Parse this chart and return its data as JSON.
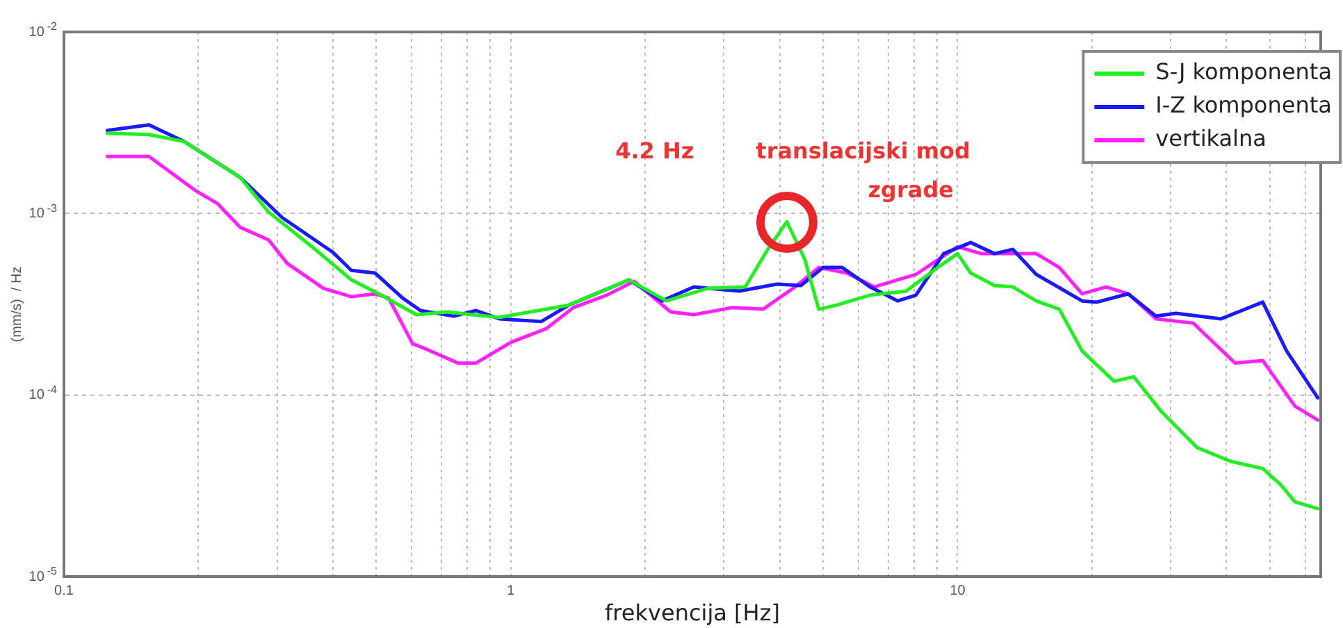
{
  "chart_data": {
    "type": "line",
    "xlabel": "frekvencija [Hz]",
    "ylabel": "(mm/s)  / Hz",
    "log": "xy",
    "grid": true,
    "legend": "top right",
    "marker": "none",
    "line_style": "solid",
    "xlim": [
      0.1,
      65
    ],
    "ylim": [
      1e-05,
      0.01
    ],
    "xticks": [
      0.1,
      {
        "value": 0.2,
        "label": null
      },
      {
        "value": 0.3,
        "label": null
      },
      {
        "value": 0.4,
        "label": null
      },
      {
        "value": 0.5,
        "label": null
      },
      {
        "value": 0.6,
        "label": null
      },
      {
        "value": 0.7,
        "label": null
      },
      {
        "value": 0.8,
        "label": null
      },
      {
        "value": 0.9,
        "label": null
      },
      1,
      {
        "value": 2,
        "label": null
      },
      {
        "value": 3,
        "label": null
      },
      {
        "value": 4,
        "label": null
      },
      {
        "value": 5,
        "label": null
      },
      {
        "value": 6,
        "label": null
      },
      {
        "value": 7,
        "label": null
      },
      {
        "value": 8,
        "label": null
      },
      {
        "value": 9,
        "label": null
      },
      10,
      {
        "value": 20,
        "label": null
      },
      {
        "value": 30,
        "label": null
      },
      {
        "value": 40,
        "label": null
      },
      {
        "value": 50,
        "label": null
      },
      {
        "value": 60,
        "label": null
      }
    ],
    "yticks": [
      {
        "value": 1e-05,
        "label": "10$^{-5}$"
      },
      {
        "value": 0.0001,
        "label": "10$^{-4}$"
      },
      {
        "value": 0.001,
        "label": "10$^{-3}$"
      },
      {
        "value": 0.01,
        "label": "10$^{-2}$"
      }
    ],
    "series": [
      {
        "name": "S-J komponenta",
        "color": "#22ee22",
        "x": [
          0.125,
          0.155,
          0.186,
          0.21,
          0.248,
          0.287,
          0.365,
          0.44,
          0.507,
          0.615,
          0.724,
          0.818,
          0.944,
          1.35,
          1.84,
          2.23,
          2.76,
          3.35,
          3.76,
          4.15,
          4.55,
          4.89,
          5.37,
          6.37,
          7.67,
          9.12,
          10,
          10.7,
          12.1,
          13.3,
          15.0,
          16.9,
          19.0,
          22.4,
          24.8,
          28.6,
          34.4,
          40.9,
          48.2,
          53.0,
          56.9,
          64
        ],
        "values": [
          0.00277,
          0.00272,
          0.00249,
          0.00206,
          0.00158,
          0.00102,
          0.000634,
          0.000431,
          0.000361,
          0.000277,
          0.000287,
          0.000277,
          0.000268,
          0.000313,
          0.000431,
          0.00033,
          0.000387,
          0.000394,
          0.000634,
          0.0009,
          0.00056,
          0.000297,
          0.000313,
          0.000355,
          0.000374,
          0.000513,
          0.000601,
          0.00047,
          0.000401,
          0.000394,
          0.00033,
          0.000297,
          0.000175,
          0.000119,
          0.000126,
          8.1e-05,
          5.13e-05,
          4.31e-05,
          3.94e-05,
          3.19e-05,
          2.58e-05,
          2.37e-05
        ]
      },
      {
        "name": "I-Z komponenta",
        "color": "#1a1aff",
        "x": [
          0.125,
          0.155,
          0.186,
          0.248,
          0.308,
          0.4,
          0.44,
          0.497,
          0.573,
          0.628,
          0.746,
          0.836,
          0.944,
          1.17,
          1.35,
          1.84,
          2.18,
          2.57,
          3.25,
          3.94,
          4.46,
          5.0,
          5.52,
          6.37,
          7.35,
          8.07,
          9.31,
          10.7,
          12.1,
          13.3,
          15.0,
          19.0,
          20.5,
          24.1,
          27.8,
          30.8,
          38.9,
          48.2,
          54.5,
          64
        ],
        "values": [
          0.00287,
          0.00308,
          0.00249,
          0.00158,
          0.000949,
          0.000611,
          0.000486,
          0.00047,
          0.000342,
          0.000292,
          0.000272,
          0.000292,
          0.000263,
          0.000254,
          0.000313,
          0.000431,
          0.00033,
          0.000394,
          0.000374,
          0.000408,
          0.000401,
          0.000504,
          0.000504,
          0.000394,
          0.00033,
          0.000355,
          0.000601,
          0.000692,
          0.000601,
          0.000634,
          0.000462,
          0.00033,
          0.000325,
          0.000361,
          0.000272,
          0.000282,
          0.000263,
          0.000325,
          0.000175,
          9.66e-05
        ]
      },
      {
        "name": "vertikalna",
        "color": "#ff22ff",
        "x": [
          0.125,
          0.155,
          0.196,
          0.221,
          0.248,
          0.287,
          0.316,
          0.381,
          0.44,
          0.497,
          0.533,
          0.603,
          0.647,
          0.762,
          0.836,
          1.0,
          1.2,
          1.38,
          1.64,
          1.89,
          2.28,
          2.57,
          3.12,
          3.67,
          4.33,
          4.89,
          5.65,
          6.51,
          8.07,
          10,
          11.3,
          15.0,
          16.9,
          19.0,
          21.5,
          24.1,
          27.8,
          33.7,
          41.8,
          48.2,
          56.9,
          64
        ],
        "values": [
          0.00206,
          0.00206,
          0.00135,
          0.00113,
          0.000839,
          0.000716,
          0.000531,
          0.000387,
          0.000348,
          0.000361,
          0.000342,
          0.000192,
          0.000179,
          0.00015,
          0.00015,
          0.000195,
          0.000232,
          0.000303,
          0.000355,
          0.000423,
          0.000287,
          0.000277,
          0.000303,
          0.000297,
          0.000394,
          0.000504,
          0.00047,
          0.000394,
          0.000462,
          0.000656,
          0.000601,
          0.000601,
          0.000504,
          0.000361,
          0.000394,
          0.000361,
          0.000263,
          0.000249,
          0.00015,
          0.000155,
          8.69e-05,
          7.29e-05
        ]
      }
    ],
    "annotations": [
      "4.2 Hz",
      {
        "text": "translacijski mod zgrade",
        "x": 4.15,
        "y": 0.0009
      }
    ]
  }
}
